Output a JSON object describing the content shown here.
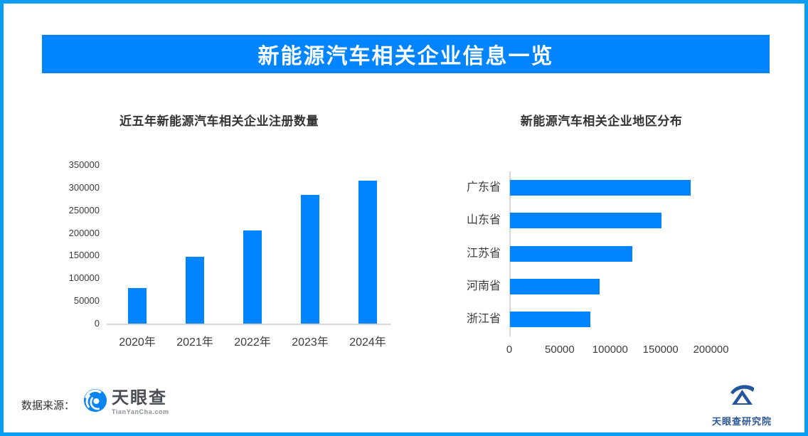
{
  "banner": {
    "title": "新能源汽车相关企业信息一览"
  },
  "chart_data": [
    {
      "type": "bar",
      "orientation": "vertical",
      "title": "近五年新能源汽车相关企业注册数量",
      "categories": [
        "2020年",
        "2021年",
        "2022年",
        "2023年",
        "2024年"
      ],
      "values": [
        78000,
        147000,
        206000,
        284000,
        316000
      ],
      "ylabel": "",
      "xlabel": "",
      "ylim": [
        0,
        350000
      ],
      "yticks": [
        0,
        50000,
        100000,
        150000,
        200000,
        250000,
        300000,
        350000
      ],
      "grid": false,
      "legend": false,
      "bar_color": "#0084ff"
    },
    {
      "type": "bar",
      "orientation": "horizontal",
      "title": "新能源汽车相关企业地区分布",
      "categories": [
        "广东省",
        "山东省",
        "江苏省",
        "河南省",
        "浙江省"
      ],
      "values": [
        179000,
        150000,
        121000,
        89000,
        80000
      ],
      "ylabel": "",
      "xlabel": "",
      "xlim": [
        0,
        250000
      ],
      "xticks": [
        0,
        50000,
        100000,
        150000,
        200000
      ],
      "grid": false,
      "legend": false,
      "bar_color": "#0084ff"
    }
  ],
  "footer": {
    "source_label": "数据来源：",
    "logo": {
      "name": "天眼查",
      "domain": "TianYanCha.com"
    },
    "institute_name": "天眼查研究院"
  },
  "colors": {
    "primary_blue": "#0084ff",
    "page_border_blue": "#0b9df2",
    "axis_line_gray": "#d9d9d9",
    "title_text": "#333333",
    "tick_text": "#3c3c3c",
    "tyc_logo_text": "#4a4e54",
    "institute_text": "#2b5692"
  },
  "icons": {
    "tianyancha-logo-icon": "blue circle with white swirl (vortex eye)",
    "institute-logo-icon": "dark blue arc swoosh over mountain/A shape"
  }
}
